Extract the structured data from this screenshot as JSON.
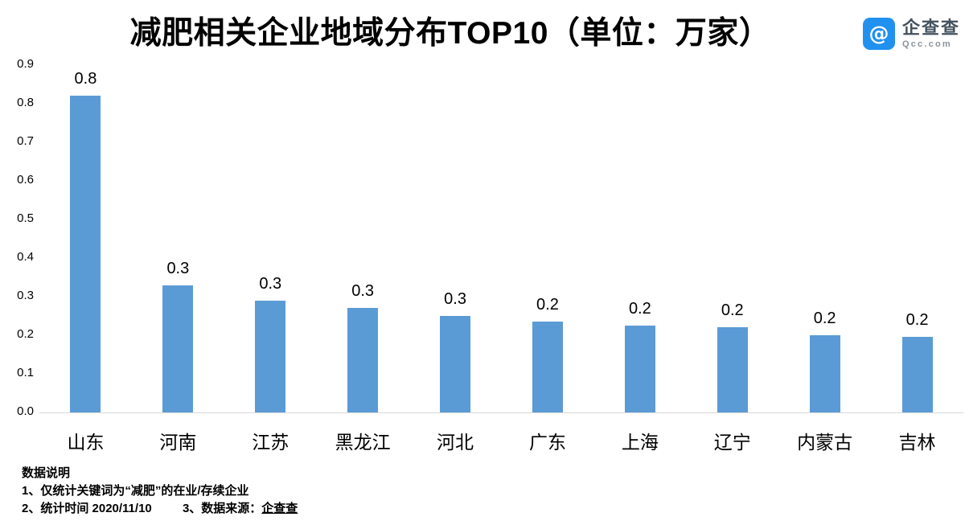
{
  "header": {
    "title": "减肥相关企业地域分布TOP10（单位：万家）",
    "logo": {
      "brand": "企查查",
      "domain": "Qcc.com"
    }
  },
  "chart_data": {
    "type": "bar",
    "title": "减肥相关企业地域分布TOP10（单位：万家）",
    "categories": [
      "山东",
      "河南",
      "江苏",
      "黑龙江",
      "河北",
      "广东",
      "上海",
      "辽宁",
      "内蒙古",
      "吉林"
    ],
    "values": [
      0.82,
      0.33,
      0.29,
      0.27,
      0.25,
      0.235,
      0.225,
      0.22,
      0.2,
      0.196
    ],
    "bar_labels": [
      "0.8",
      "0.3",
      "0.3",
      "0.3",
      "0.3",
      "0.2",
      "0.2",
      "0.2",
      "0.2",
      "0.2"
    ],
    "xlabel": "",
    "ylabel": "",
    "ylim": [
      0,
      0.9
    ],
    "ytick_step": 0.1,
    "yticks": [
      "0.0",
      "0.1",
      "0.2",
      "0.3",
      "0.4",
      "0.5",
      "0.6",
      "0.7",
      "0.8",
      "0.9"
    ],
    "grid": false,
    "legend": null,
    "bar_color": "#5b9bd5"
  },
  "notes": {
    "heading": "数据说明",
    "line1": "1、仅统计关键词为“减肥”的在业/存续企业",
    "line2_left": "2、统计时间  2020/11/10",
    "line2_right_prefix": "3、数据来源：",
    "line2_right_brand": "企查查"
  },
  "colors": {
    "bar": "#5b9bd5",
    "axis_line": "#d9d9d9",
    "text": "#000000",
    "logo_blue": "#2191f0",
    "logo_brand_text": "#44525e",
    "logo_domain_text": "#8a939b"
  }
}
